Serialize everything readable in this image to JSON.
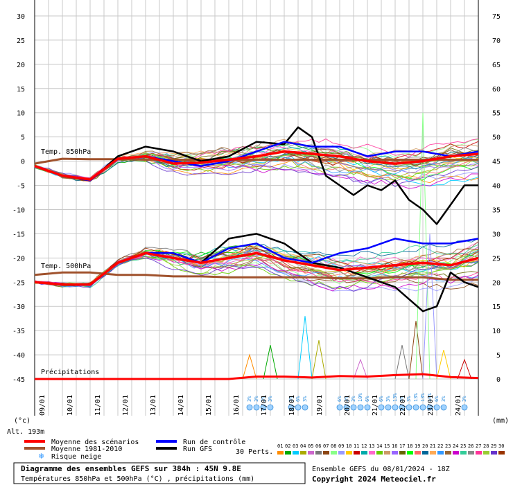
{
  "chart_data": {
    "type": "line",
    "y_left_range": [
      -45,
      30
    ],
    "y_left_ticks": [
      "30",
      "25",
      "20",
      "15",
      "10",
      "5",
      "0",
      "-5",
      "-10",
      "-15",
      "-20",
      "-25",
      "-30",
      "-35",
      "-40",
      "-45"
    ],
    "y_right_range": [
      0,
      75
    ],
    "y_right_ticks": [
      "75",
      "70",
      "65",
      "60",
      "55",
      "50",
      "45",
      "40",
      "35",
      "30",
      "25",
      "20",
      "15",
      "10",
      "5",
      "0"
    ],
    "y_left_unit": "(°c)",
    "y_right_unit": "(mm)",
    "altitude": "Alt. 193m",
    "x_hours": [
      0,
      384
    ],
    "date_labels": [
      "09/01",
      "10/01",
      "11/01",
      "12/01",
      "13/01",
      "14/01",
      "15/01",
      "16/01",
      "17/01",
      "18/01",
      "19/01",
      "20/01",
      "21/01",
      "22/01",
      "23/01",
      "24/01"
    ],
    "section_labels": {
      "t850": "Temp. 850hPa",
      "t500": "Temp. 500hPa",
      "precip": "Précipitations"
    },
    "series": {
      "mean_t850": {
        "color": "#ff0000",
        "x": [
          0,
          24,
          48,
          72,
          96,
          120,
          144,
          168,
          192,
          216,
          240,
          264,
          288,
          312,
          336,
          360,
          384
        ],
        "values": [
          -1,
          -3,
          -3.8,
          0.5,
          1,
          -0.5,
          -0.3,
          0.3,
          1,
          2,
          1.5,
          1,
          0,
          -0.5,
          0,
          1,
          1.5
        ]
      },
      "control_t850": {
        "color": "#0000ff",
        "x": [
          0,
          24,
          48,
          72,
          96,
          120,
          144,
          168,
          192,
          216,
          240,
          264,
          288,
          312,
          336,
          360,
          384
        ],
        "values": [
          -1,
          -3,
          -4,
          0.5,
          1,
          0,
          -1,
          0,
          2,
          4,
          3,
          3,
          1,
          2,
          2,
          1,
          2
        ]
      },
      "gfs_t850": {
        "color": "#000000",
        "x": [
          0,
          24,
          48,
          72,
          96,
          120,
          144,
          168,
          192,
          216,
          228,
          240,
          252,
          264,
          276,
          288,
          300,
          312,
          324,
          336,
          348,
          360,
          372,
          384
        ],
        "values": [
          -1,
          -3,
          -4,
          1,
          3,
          2,
          0,
          1,
          4,
          3.5,
          7,
          5,
          -3,
          -5,
          -7,
          -5,
          -6,
          -4,
          -8,
          -10,
          -13,
          -9,
          -5,
          -5
        ]
      },
      "clim_t850": {
        "color": "#a0522d",
        "x": [
          0,
          24,
          48,
          72,
          96,
          120,
          144,
          168,
          192,
          216,
          240,
          264,
          288,
          312,
          336,
          360,
          384
        ],
        "values": [
          -0.5,
          0.5,
          0.4,
          0.4,
          0.3,
          0.3,
          0.3,
          0.3,
          0.3,
          0.3,
          0.3,
          0.3,
          0.3,
          0.3,
          0.3,
          0.3,
          0.3
        ]
      },
      "mean_t500": {
        "color": "#ff0000",
        "x": [
          0,
          24,
          48,
          72,
          96,
          120,
          144,
          168,
          192,
          216,
          240,
          264,
          288,
          312,
          336,
          360,
          384
        ],
        "values": [
          -25,
          -25.5,
          -25.5,
          -21,
          -19,
          -20,
          -21,
          -20,
          -19,
          -20.5,
          -21.5,
          -22.5,
          -22,
          -21.5,
          -21,
          -21.5,
          -20
        ]
      },
      "control_t500": {
        "color": "#0000ff",
        "x": [
          0,
          24,
          48,
          72,
          96,
          120,
          144,
          168,
          192,
          216,
          240,
          264,
          288,
          312,
          336,
          360,
          384
        ],
        "values": [
          -25,
          -25.5,
          -25.5,
          -21,
          -19,
          -19,
          -21,
          -18,
          -17,
          -20,
          -21,
          -19,
          -18,
          -16,
          -17,
          -17,
          -16
        ]
      },
      "gfs_t500": {
        "color": "#000000",
        "x": [
          0,
          24,
          48,
          72,
          96,
          120,
          144,
          168,
          192,
          216,
          240,
          264,
          288,
          312,
          336,
          348,
          360,
          372,
          384
        ],
        "values": [
          -25,
          -25.5,
          -25.5,
          -21,
          -19,
          -19,
          -21,
          -16,
          -15,
          -17,
          -21,
          -22,
          -24,
          -26,
          -31,
          -30,
          -23,
          -25,
          -26
        ]
      },
      "clim_t500": {
        "color": "#a0522d",
        "x": [
          0,
          24,
          48,
          72,
          96,
          120,
          144,
          168,
          192,
          216,
          240,
          264,
          288,
          312,
          336,
          360,
          384
        ],
        "values": [
          -23.5,
          -23,
          -23,
          -23.5,
          -23.5,
          -23.8,
          -23.8,
          -24,
          -24,
          -24,
          -24,
          -24.2,
          -24.2,
          -24,
          -24,
          -24.5,
          -24.5
        ]
      },
      "mean_precip_mm": {
        "color": "#ff0000",
        "x": [
          0,
          168,
          192,
          216,
          240,
          264,
          288,
          312,
          336,
          360,
          384
        ],
        "values": [
          0,
          0,
          0.5,
          0.5,
          0.3,
          0.6,
          0.5,
          0.8,
          1,
          0.4,
          0.2
        ]
      }
    },
    "precip_spikes_mm": [
      {
        "x": 186,
        "v": 5
      },
      {
        "x": 204,
        "v": 7
      },
      {
        "x": 234,
        "v": 13
      },
      {
        "x": 246,
        "v": 8
      },
      {
        "x": 282,
        "v": 4
      },
      {
        "x": 318,
        "v": 7
      },
      {
        "x": 330,
        "v": 12
      },
      {
        "x": 336,
        "v": 55
      },
      {
        "x": 342,
        "v": 30
      },
      {
        "x": 354,
        "v": 6
      },
      {
        "x": 372,
        "v": 4
      }
    ],
    "snow_risk": [
      {
        "x": 186,
        "pct": "3%"
      },
      {
        "x": 192,
        "pct": "3%"
      },
      {
        "x": 198,
        "pct": "3%"
      },
      {
        "x": 204,
        "pct": "3%"
      },
      {
        "x": 222,
        "pct": "3%"
      },
      {
        "x": 228,
        "pct": "6%"
      },
      {
        "x": 234,
        "pct": "3%"
      },
      {
        "x": 264,
        "pct": "6%"
      },
      {
        "x": 270,
        "pct": "3%"
      },
      {
        "x": 276,
        "pct": "3%"
      },
      {
        "x": 282,
        "pct": "10%"
      },
      {
        "x": 288,
        "pct": "6%"
      },
      {
        "x": 300,
        "pct": "6%"
      },
      {
        "x": 306,
        "pct": "3%"
      },
      {
        "x": 312,
        "pct": "13%"
      },
      {
        "x": 318,
        "pct": "3%"
      },
      {
        "x": 324,
        "pct": "3%"
      },
      {
        "x": 330,
        "pct": "13%"
      },
      {
        "x": 336,
        "pct": "13%"
      },
      {
        "x": 342,
        "pct": "10%"
      },
      {
        "x": 348,
        "pct": "6%"
      },
      {
        "x": 354,
        "pct": "3%"
      },
      {
        "x": 372,
        "pct": "3%"
      }
    ]
  },
  "legend": {
    "mean": "Moyenne des scénarios",
    "clim": "Moyenne 1981-2010",
    "snow": "Risque neige",
    "control": "Run de contrôle",
    "gfs": "Run GFS",
    "perts_label": "30 Perts.",
    "perts": [
      "01",
      "02",
      "03",
      "04",
      "05",
      "06",
      "07",
      "08",
      "09",
      "10",
      "11",
      "12",
      "13",
      "14",
      "15",
      "16",
      "17",
      "18",
      "19",
      "20",
      "21",
      "22",
      "23",
      "24",
      "25",
      "26",
      "27",
      "28",
      "29",
      "30"
    ],
    "pert_colors": [
      "#ff8c00",
      "#00aa00",
      "#00ccff",
      "#aaaa00",
      "#cc66cc",
      "#777777",
      "#8b4513",
      "#88ff88",
      "#9999ff",
      "#ffcc00",
      "#cc0000",
      "#00aaaa",
      "#ff66cc",
      "#66cc00",
      "#cc9966",
      "#9966ff",
      "#666600",
      "#00ff00",
      "#ff6666",
      "#006699",
      "#ffaa55",
      "#3399ff",
      "#996633",
      "#cc00cc",
      "#33cc99",
      "#888888",
      "#ff3399",
      "#99cc33",
      "#6633cc",
      "#993300"
    ]
  },
  "info": {
    "title": "Diagramme des ensembles GEFS sur 384h : 45N 9.8E",
    "subtitle": "Températures 850hPa et 500hPa (°C) , précipitations (mm)",
    "run": "Ensemble GEFS du 08/01/2024 - 18Z",
    "copyright": "Copyright 2024 Meteociel.fr"
  }
}
